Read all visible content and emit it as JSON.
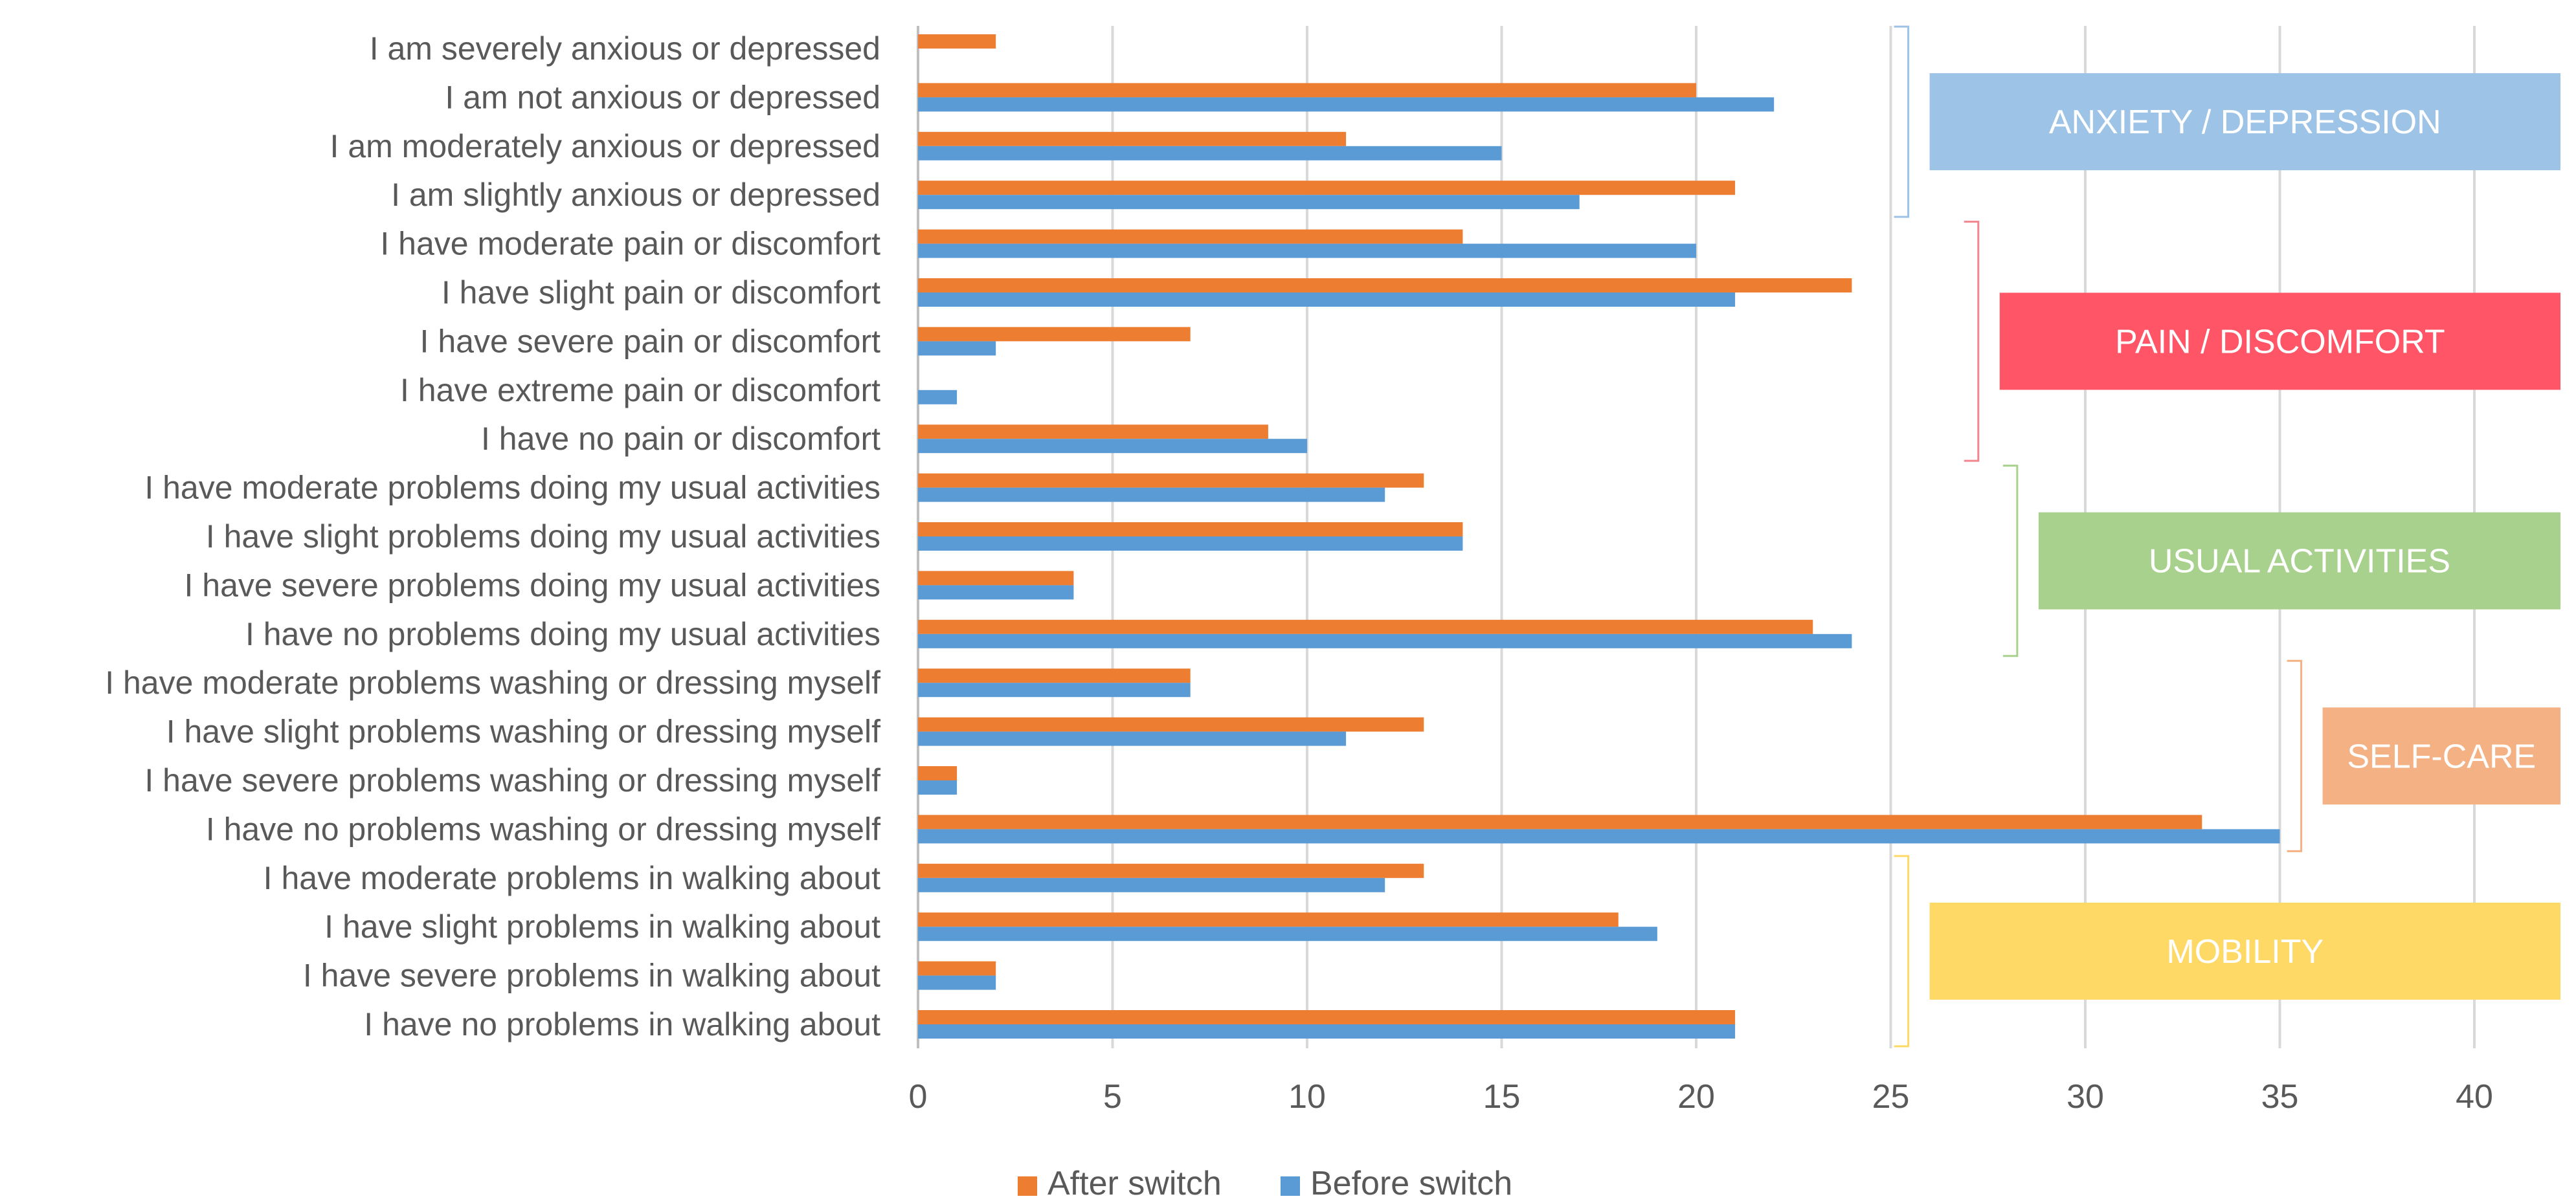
{
  "chart_data": {
    "type": "bar",
    "orientation": "horizontal",
    "categories": [
      "I am severely anxious or depressed",
      "I am not anxious or depressed",
      "I am moderately anxious or depressed",
      "I am slightly anxious or depressed",
      "I have moderate pain or discomfort",
      "I have slight pain or discomfort",
      "I have severe pain or discomfort",
      "I have extreme pain or discomfort",
      "I have no pain or discomfort",
      "I have moderate problems doing my usual activities",
      "I have slight problems doing my usual activities",
      "I have severe problems doing my usual activities",
      "I have no problems doing my usual activities",
      "I have moderate problems washing or dressing myself",
      "I have slight problems washing or dressing myself",
      "I have severe problems washing or dressing myself",
      "I have no problems washing or dressing myself",
      "I have moderate problems in walking about",
      "I have slight problems in walking about",
      "I have severe problems in walking about",
      "I have no problems in walking about"
    ],
    "series": [
      {
        "name": "After switch",
        "color": "#ED7D31",
        "values": [
          2,
          20,
          11,
          21,
          14,
          24,
          7,
          0,
          9,
          13,
          14,
          4,
          23,
          7,
          13,
          1,
          33,
          13,
          18,
          2,
          21
        ]
      },
      {
        "name": "Before switch",
        "color": "#5B9BD5",
        "values": [
          0,
          22,
          15,
          17,
          20,
          21,
          2,
          1,
          10,
          12,
          14,
          4,
          24,
          7,
          11,
          1,
          35,
          12,
          19,
          2,
          21
        ]
      }
    ],
    "xlim": [
      0,
      42
    ],
    "xticks": [
      "0",
      "5",
      "10",
      "15",
      "20",
      "25",
      "30",
      "35",
      "40"
    ],
    "xtick_values": [
      0,
      5,
      10,
      15,
      20,
      25,
      30,
      35,
      40
    ],
    "title": "",
    "xlabel": "",
    "ylabel": "",
    "grid": "vertical",
    "legend": "bottom-center",
    "groups": [
      {
        "label": "ANXIETY / DEPRESSION",
        "first": 0,
        "last": 3,
        "color": "#9DC3E6",
        "bracket_color": "#9DC3E6",
        "start_value": 26
      },
      {
        "label": "PAIN / DISCOMFORT",
        "first": 4,
        "last": 8,
        "color": "#FF5566",
        "bracket_color": "#F4868F",
        "start_value": 27.8
      },
      {
        "label": "USUAL ACTIVITIES",
        "first": 9,
        "last": 12,
        "color": "#A9D18E",
        "bracket_color": "#A9D18E",
        "start_value": 28.8
      },
      {
        "label": "SELF-CARE",
        "first": 13,
        "last": 16,
        "color": "#F4B183",
        "bracket_color": "#F4B183",
        "start_value": 36.1
      },
      {
        "label": "MOBILITY",
        "first": 17,
        "last": 20,
        "color": "#FFD966",
        "bracket_color": "#FFD966",
        "start_value": 26
      }
    ],
    "group_label_color": "#FFFFFF",
    "grid_color": "#D9D9D9",
    "axis_color": "#BFBFBF",
    "text_color": "#595959"
  }
}
